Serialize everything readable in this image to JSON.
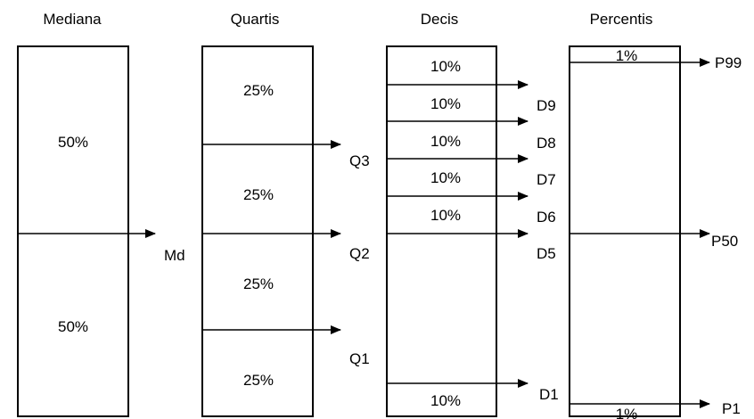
{
  "titles": {
    "mediana": "Mediana",
    "quartis": "Quartis",
    "decis": "Decis",
    "percentis": "Percentis"
  },
  "mediana": {
    "top_pct": "50%",
    "bottom_pct": "50%",
    "marker": "Md"
  },
  "quartis": {
    "pcts": [
      "25%",
      "25%",
      "25%",
      "25%"
    ],
    "markers": [
      "Q3",
      "Q2",
      "Q1"
    ]
  },
  "decis": {
    "pcts": [
      "10%",
      "10%",
      "10%",
      "10%",
      "10%",
      "10%"
    ],
    "markers": [
      "D9",
      "D8",
      "D7",
      "D6",
      "D5",
      "D1"
    ]
  },
  "percentis": {
    "top_pct": "1%",
    "bottom_pct": "1%",
    "markers": [
      "P99",
      "P50",
      "P1"
    ]
  }
}
